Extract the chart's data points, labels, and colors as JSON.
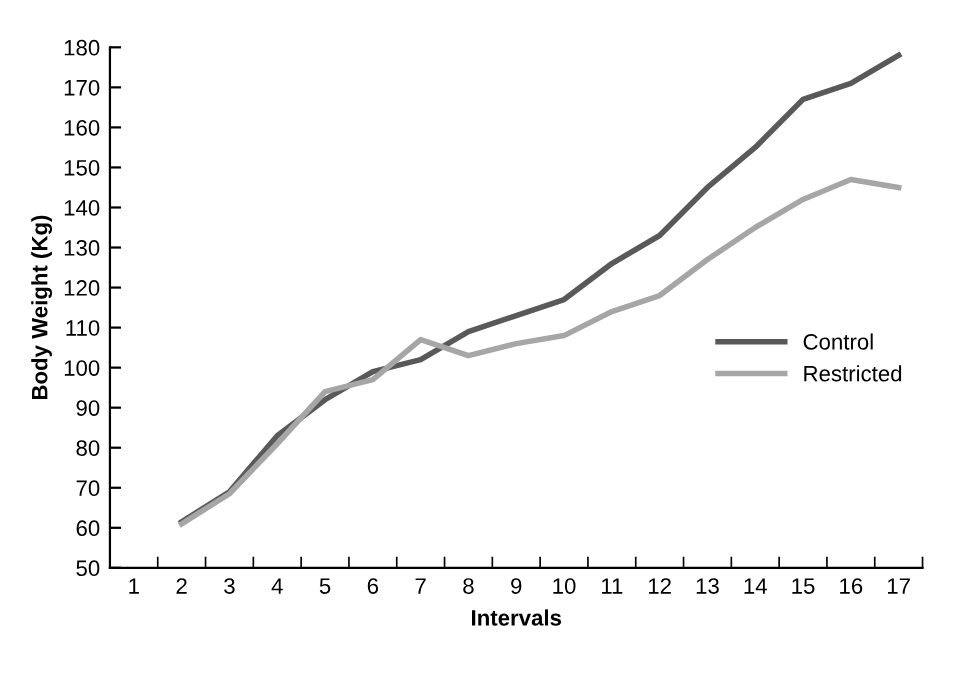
{
  "chart_data": {
    "type": "line",
    "xlabel": "Intervals",
    "ylabel": "Body Weight (Kg)",
    "categories": [
      "1",
      "2",
      "3",
      "4",
      "5",
      "6",
      "7",
      "8",
      "9",
      "10",
      "11",
      "12",
      "13",
      "14",
      "15",
      "16",
      "17"
    ],
    "series": [
      {
        "name": "Control",
        "color": "#595959",
        "values": [
          null,
          61.5,
          69,
          83,
          92,
          99,
          102,
          109,
          113,
          117,
          126,
          133,
          145,
          155,
          167,
          171,
          178
        ]
      },
      {
        "name": "Restricted",
        "color": "#a6a6a6",
        "values": [
          null,
          61,
          68.5,
          81,
          94,
          97,
          107,
          103,
          106,
          108,
          114,
          118,
          127,
          135,
          142,
          147,
          145
        ]
      }
    ],
    "ylim": [
      50,
      180
    ],
    "yticks": [
      50,
      60,
      70,
      80,
      90,
      100,
      110,
      120,
      130,
      140,
      150,
      160,
      170,
      180
    ],
    "grid": false,
    "legend": "right",
    "marker": "none",
    "line_style": "solid"
  }
}
